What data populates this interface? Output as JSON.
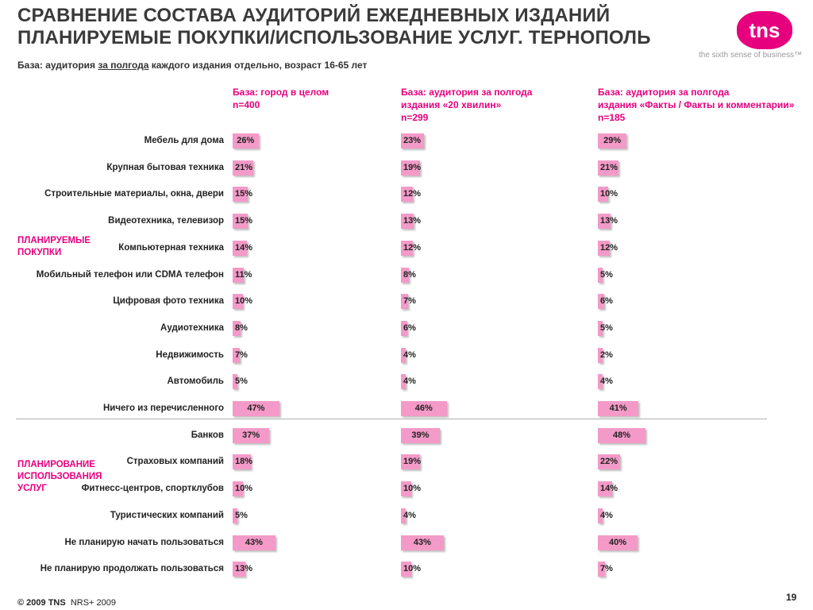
{
  "header": {
    "title_line1": "СРАВНЕНИЕ СОСТАВА АУДИТОРИЙ ЕЖЕДНЕВНЫХ ИЗДАНИЙ",
    "title_line2": "ПЛАНИРУЕМЫЕ ПОКУПКИ/ИСПОЛЬЗОВАНИЕ УСЛУГ. ТЕРНОПОЛЬ",
    "logo_text": "tns",
    "tagline": "the sixth sense of business™",
    "base_prefix": "База: аудитория ",
    "base_underlined": "за полгода",
    "base_suffix": " каждого издания отдельно, возраст 16-65 лет"
  },
  "colors": {
    "accent": "#e6007e",
    "bar": "#f39ac8"
  },
  "chart_data": {
    "type": "bar",
    "orientation": "horizontal",
    "value_unit": "%",
    "sections": [
      {
        "label_lines": [
          "ПЛАНИРУЕМЫЕ",
          "ПОКУПКИ"
        ],
        "row_start": 0,
        "row_end": 10
      },
      {
        "label_lines": [
          "ПЛАНИРОВАНИЕ",
          "ИСПОЛЬЗОВАНИЯ",
          "УСЛУГ"
        ],
        "row_start": 11,
        "row_end": 16
      }
    ],
    "categories": [
      "Мебель для дома",
      "Крупная бытовая техника",
      "Строительные материалы, окна, двери",
      "Видеотехника, телевизор",
      "Компьютерная техника",
      "Мобильный телефон или CDMA телефон",
      "Цифровая фото техника",
      "Аудиотехника",
      "Недвижимость",
      "Автомобиль",
      "Ничего из перечисленного",
      "Банков",
      "Страховых компаний",
      "Фитнесс-центров, спортклубов",
      "Туристических компаний",
      "Не планирую начать пользоваться",
      "Не планирую продолжать пользоваться"
    ],
    "series": [
      {
        "name_lines": [
          "База: город в целом",
          "n=400"
        ],
        "values": [
          26,
          21,
          15,
          15,
          14,
          11,
          10,
          8,
          7,
          5,
          47,
          37,
          18,
          10,
          5,
          43,
          13
        ]
      },
      {
        "name_lines": [
          "База: аудитория за полгода",
          "издания «20 хвилин»",
          "n=299"
        ],
        "values": [
          23,
          19,
          12,
          13,
          12,
          8,
          7,
          6,
          4,
          4,
          46,
          39,
          19,
          10,
          4,
          43,
          10
        ]
      },
      {
        "name_lines": [
          "База: аудитория за полгода",
          "издания «Факты / Факты и комментарии»",
          "n=185"
        ],
        "values": [
          29,
          21,
          10,
          13,
          12,
          5,
          6,
          5,
          2,
          4,
          41,
          48,
          22,
          14,
          4,
          40,
          7
        ]
      }
    ]
  },
  "footer": {
    "copyright": "© 2009 TNS",
    "source": "NRS+ 2009",
    "page": "19"
  }
}
